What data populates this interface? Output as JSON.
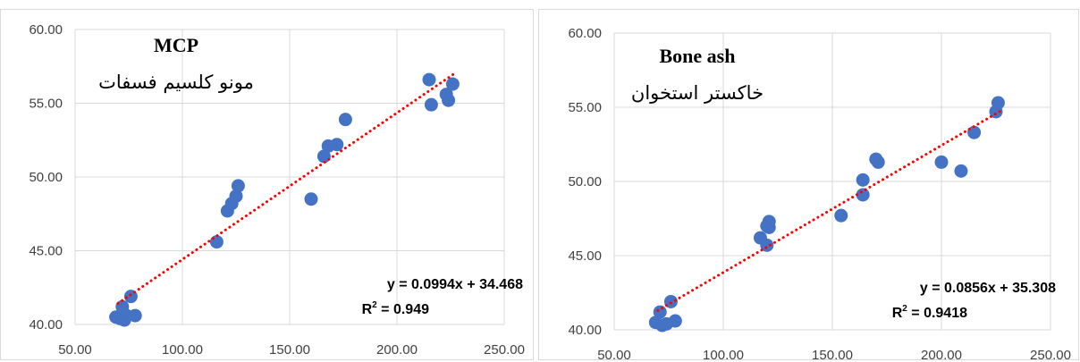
{
  "colors": {
    "points": "#4472C4",
    "trendline": "#FF0000",
    "grid": "#D9D9D9",
    "axis_text": "#404040"
  },
  "chart_data": [
    {
      "type": "scatter",
      "title": "MCP",
      "subtitle": "مونو کلسیم فسفات",
      "xlim": [
        50,
        250
      ],
      "ylim": [
        40,
        60
      ],
      "x_ticks": [
        "50.00",
        "100.00",
        "150.00",
        "200.00",
        "250.00"
      ],
      "y_ticks": [
        "40.00",
        "45.00",
        "50.00",
        "55.00",
        "60.00"
      ],
      "grid": "vertical and horizontal",
      "points": [
        {
          "x": 69,
          "y": 40.5
        },
        {
          "x": 71,
          "y": 40.4
        },
        {
          "x": 72,
          "y": 41.2
        },
        {
          "x": 73,
          "y": 40.3
        },
        {
          "x": 74,
          "y": 40.6
        },
        {
          "x": 76,
          "y": 41.9
        },
        {
          "x": 78,
          "y": 40.6
        },
        {
          "x": 116,
          "y": 45.6
        },
        {
          "x": 121,
          "y": 47.7
        },
        {
          "x": 123,
          "y": 48.2
        },
        {
          "x": 125,
          "y": 48.7
        },
        {
          "x": 126,
          "y": 49.4
        },
        {
          "x": 160,
          "y": 48.5
        },
        {
          "x": 166,
          "y": 51.4
        },
        {
          "x": 168,
          "y": 52.1
        },
        {
          "x": 172,
          "y": 52.2
        },
        {
          "x": 176,
          "y": 53.9
        },
        {
          "x": 215,
          "y": 56.6
        },
        {
          "x": 216,
          "y": 54.9
        },
        {
          "x": 223,
          "y": 55.6
        },
        {
          "x": 224,
          "y": 55.2
        },
        {
          "x": 226,
          "y": 56.3
        }
      ],
      "trendline": {
        "slope": 0.0994,
        "intercept": 34.468,
        "x_range": [
          70,
          227
        ],
        "style": "dotted"
      },
      "equation": "y = 0.0994x + 34.468",
      "r2_label": "R",
      "r2_value": " = 0.949"
    },
    {
      "type": "scatter",
      "title": "Bone ash",
      "subtitle": "خاکستر استخوان",
      "xlim": [
        50,
        250
      ],
      "ylim": [
        40,
        60
      ],
      "x_ticks": [
        "50.00",
        "100.00",
        "150.00",
        "200.00",
        "250.00"
      ],
      "y_ticks": [
        "40.00",
        "45.00",
        "50.00",
        "55.00",
        "60.00"
      ],
      "grid": "vertical and horizontal",
      "points": [
        {
          "x": 69,
          "y": 40.5
        },
        {
          "x": 71,
          "y": 41.2
        },
        {
          "x": 72,
          "y": 40.3
        },
        {
          "x": 74,
          "y": 40.4
        },
        {
          "x": 76,
          "y": 41.9
        },
        {
          "x": 78,
          "y": 40.6
        },
        {
          "x": 117,
          "y": 46.2
        },
        {
          "x": 120,
          "y": 45.7
        },
        {
          "x": 120,
          "y": 47.0
        },
        {
          "x": 121,
          "y": 47.3
        },
        {
          "x": 121,
          "y": 46.9
        },
        {
          "x": 154,
          "y": 47.7
        },
        {
          "x": 164,
          "y": 49.1
        },
        {
          "x": 164,
          "y": 50.1
        },
        {
          "x": 170,
          "y": 51.5
        },
        {
          "x": 171,
          "y": 51.3
        },
        {
          "x": 200,
          "y": 51.3
        },
        {
          "x": 209,
          "y": 50.7
        },
        {
          "x": 215,
          "y": 53.3
        },
        {
          "x": 225,
          "y": 54.7
        },
        {
          "x": 226,
          "y": 55.3
        }
      ],
      "trendline": {
        "slope": 0.0856,
        "intercept": 35.308,
        "x_range": [
          70,
          227
        ],
        "style": "dotted"
      },
      "equation": "y = 0.0856x + 35.308",
      "r2_label": "R",
      "r2_value": " = 0.9418"
    }
  ]
}
